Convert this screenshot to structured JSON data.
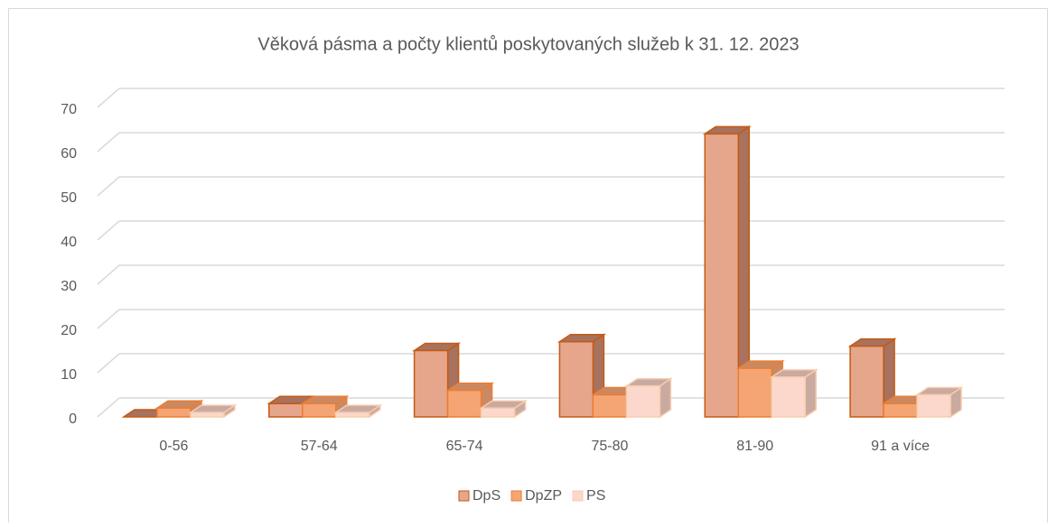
{
  "chart_data": {
    "type": "bar3d",
    "title": "Věková pásma a počty klientů poskytovaných služeb k 31. 12. 2023",
    "categories": [
      "0-56",
      "57-64",
      "65-74",
      "75-80",
      "81-90",
      "91 a více"
    ],
    "series": [
      {
        "name": "DpS",
        "color": "#e6a68c",
        "values": [
          0,
          3,
          15,
          17,
          64,
          16
        ]
      },
      {
        "name": "DpZP",
        "color": "#f5a474",
        "values": [
          2,
          3,
          6,
          5,
          11,
          3
        ]
      },
      {
        "name": "PS",
        "color": "#fbd8cb",
        "values": [
          1,
          1,
          2,
          7,
          9,
          5
        ]
      }
    ],
    "ylim": [
      0,
      70
    ],
    "yticks": [
      0,
      10,
      20,
      30,
      40,
      50,
      60,
      70
    ],
    "grid": true,
    "legend": "bottom"
  }
}
